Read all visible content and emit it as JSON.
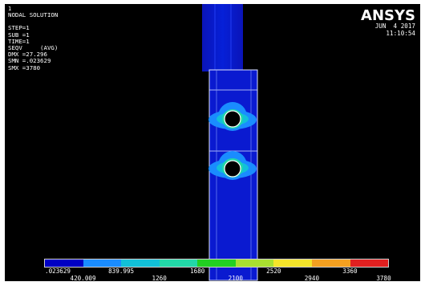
{
  "window_number": "1",
  "info_lines": [
    "NODAL SOLUTION",
    "",
    "STEP=1",
    "SUB =1",
    "TIME=1",
    "SEQV     (AVG)",
    "DMX =27.296",
    "SMN =.023629",
    "SMX =3780"
  ],
  "logo": "ANSYS",
  "date": "JUN  4 2017",
  "time": "11:10:54",
  "legend": {
    "colors": [
      "#0000c4",
      "#1a8cff",
      "#12c0d8",
      "#22d8a8",
      "#22d022",
      "#a8e030",
      "#f4e42a",
      "#f4a020",
      "#e02020"
    ],
    "labels_top_row": [
      ".023629",
      "839.995",
      "1680",
      "2520",
      "3360"
    ],
    "labels_bottom_row": [
      "420.009",
      "1260",
      "2100",
      "2940",
      "3780"
    ]
  }
}
